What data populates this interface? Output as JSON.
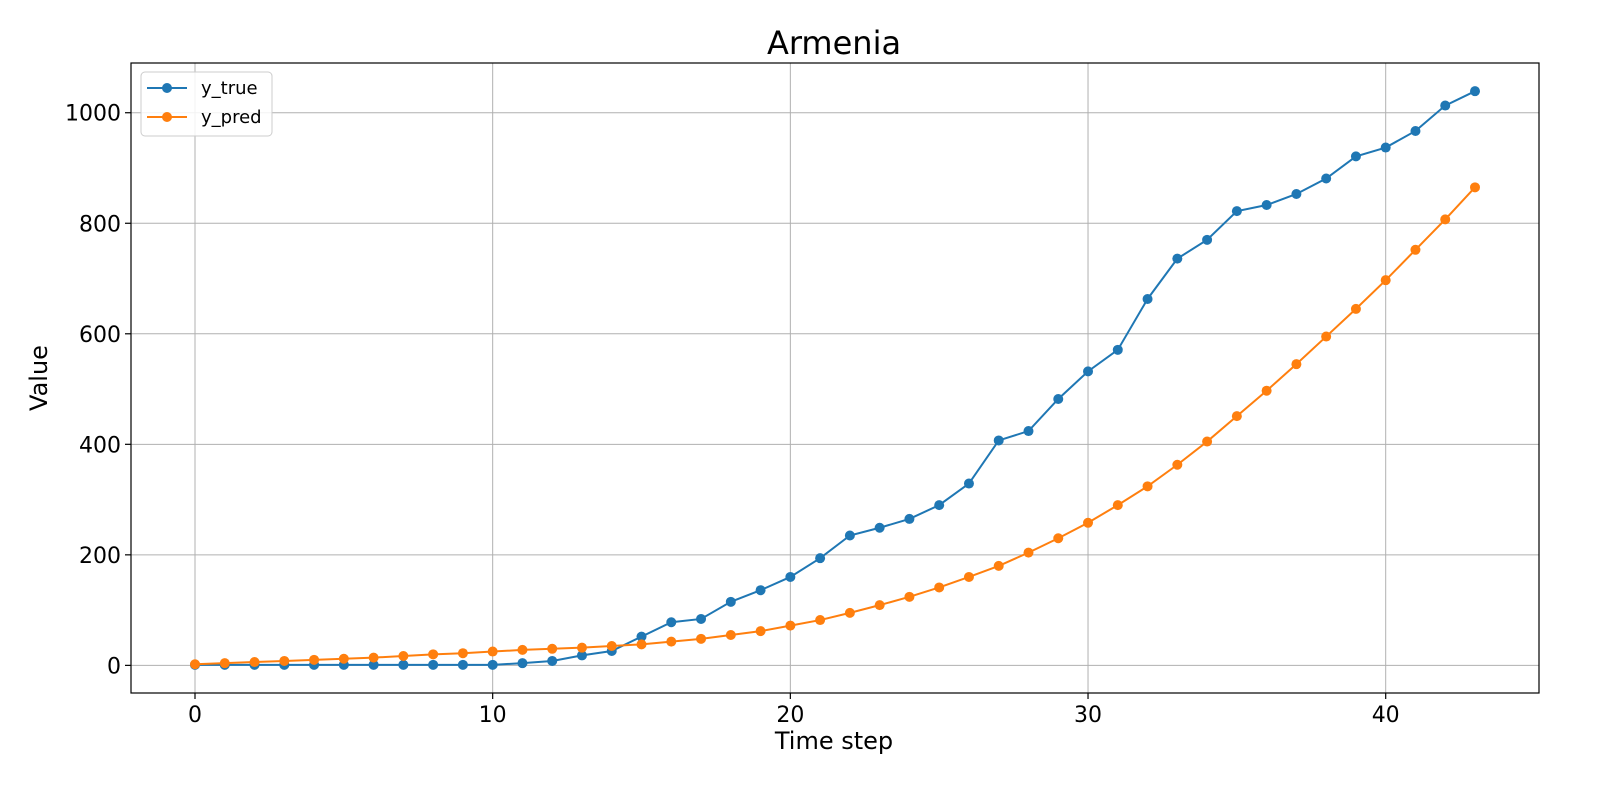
{
  "chart_data": {
    "type": "line",
    "title": "Armenia",
    "xlabel": "Time step",
    "ylabel": "Value",
    "xlim": [
      -2.15,
      45.15
    ],
    "ylim": [
      -50,
      1090
    ],
    "xticks": [
      0,
      10,
      20,
      30,
      40
    ],
    "yticks": [
      0,
      200,
      400,
      600,
      800,
      1000
    ],
    "grid": true,
    "legend_position": "top-left",
    "x": [
      0,
      1,
      2,
      3,
      4,
      5,
      6,
      7,
      8,
      9,
      10,
      11,
      12,
      13,
      14,
      15,
      16,
      17,
      18,
      19,
      20,
      21,
      22,
      23,
      24,
      25,
      26,
      27,
      28,
      29,
      30,
      31,
      32,
      33,
      34,
      35,
      36,
      37,
      38,
      39,
      40,
      41,
      42,
      43
    ],
    "series": [
      {
        "name": "y_true",
        "color": "#1f77b4",
        "values": [
          1,
          1,
          1,
          1,
          1,
          1,
          1,
          1,
          1,
          1,
          1,
          4,
          8,
          18,
          26,
          52,
          78,
          84,
          115,
          136,
          160,
          194,
          235,
          249,
          265,
          290,
          329,
          407,
          424,
          482,
          532,
          571,
          663,
          736,
          770,
          822,
          833,
          853,
          881,
          921,
          937,
          967,
          1013,
          1039
        ]
      },
      {
        "name": "y_pred",
        "color": "#ff7f0e",
        "values": [
          2,
          4,
          6,
          8,
          10,
          12,
          14,
          17,
          20,
          22,
          25,
          28,
          30,
          32,
          35,
          38,
          43,
          48,
          55,
          62,
          72,
          82,
          95,
          109,
          124,
          141,
          160,
          180,
          204,
          230,
          258,
          290,
          324,
          363,
          405,
          451,
          497,
          545,
          595,
          645,
          697,
          752,
          807,
          865
        ]
      }
    ]
  }
}
